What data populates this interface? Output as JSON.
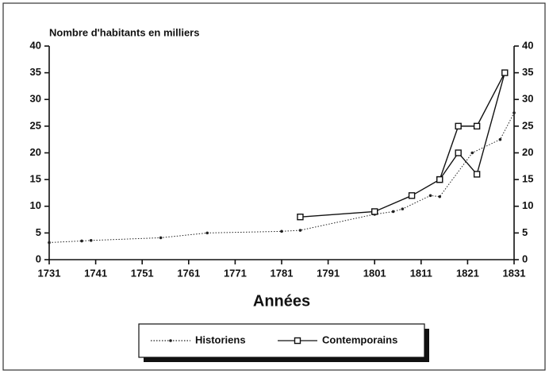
{
  "chart_data": {
    "type": "line",
    "ylabel": "Nombre d'habitants en milliers",
    "xlabel": "Années",
    "xlim": [
      1731,
      1831
    ],
    "xticks": [
      1731,
      1741,
      1751,
      1761,
      1771,
      1781,
      1791,
      1801,
      1811,
      1821,
      1831
    ],
    "ylim": [
      0,
      40
    ],
    "yticks": [
      0,
      5,
      10,
      15,
      20,
      25,
      30,
      35,
      40
    ],
    "y2lim": [
      0,
      40
    ],
    "y2ticks": [
      0,
      5,
      10,
      15,
      20,
      25,
      30,
      35,
      40
    ],
    "series": [
      {
        "name": "Historiens",
        "color": "#222",
        "marker": "dot",
        "dash": "dotted",
        "x": [
          1731,
          1738,
          1740,
          1755,
          1765,
          1781,
          1785,
          1801,
          1805,
          1807,
          1813,
          1815,
          1822,
          1828,
          1831
        ],
        "values": [
          3.2,
          3.5,
          3.6,
          4.1,
          5.0,
          5.3,
          5.5,
          8.5,
          9.0,
          9.5,
          12,
          11.8,
          20,
          22.5,
          27.5
        ]
      },
      {
        "name": "Contemporains",
        "color": "#111",
        "marker": "square",
        "dash": "solid",
        "x": [
          1785,
          1801,
          1809,
          1815,
          1819,
          1823,
          1829,
          1823,
          1819,
          1815
        ],
        "values": [
          8,
          9,
          12,
          15,
          25,
          25,
          35,
          16,
          20,
          15
        ]
      }
    ]
  }
}
